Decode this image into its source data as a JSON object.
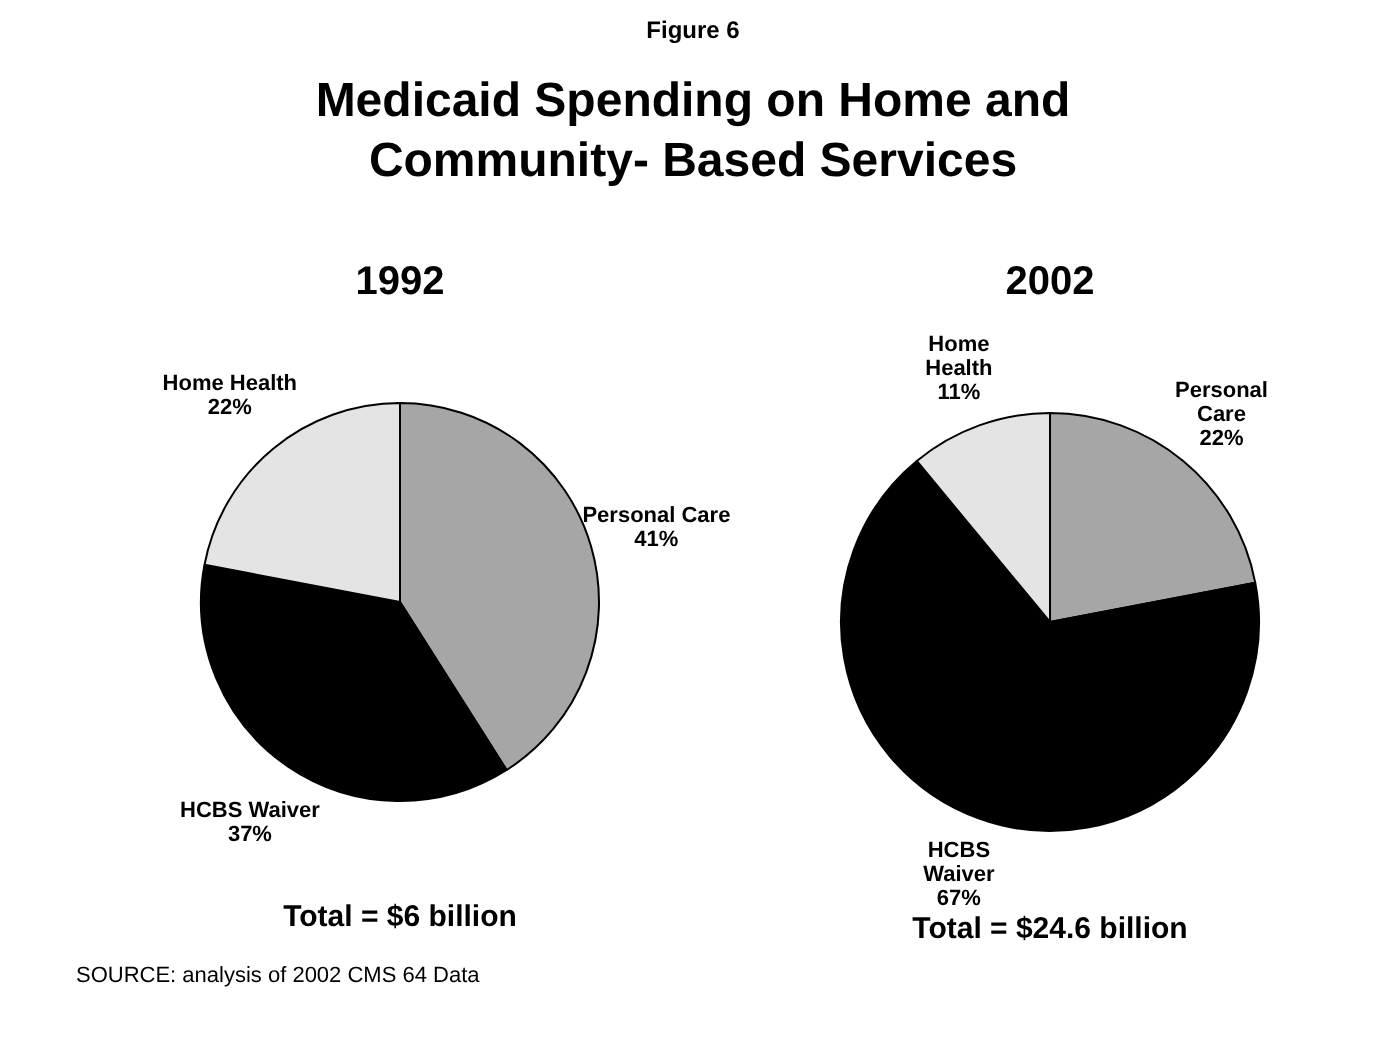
{
  "chart_data": [
    {
      "type": "other",
      "title": "Medicaid Spending on Home and Community- Based Services",
      "annotations": [
        "Figure 6"
      ]
    },
    {
      "type": "pie",
      "title": "1992",
      "categories": [
        "Personal Care",
        "HCBS Waiver",
        "Home Health"
      ],
      "values": [
        41,
        37,
        22
      ],
      "value_labels": [
        "41%",
        "37%",
        "22%"
      ],
      "colors": [
        "#a6a6a6",
        "#000000",
        "#e4e4e4"
      ],
      "annotations": [
        "Total = $6 billion",
        "SOURCE: analysis of 2002 CMS 64 Data"
      ]
    },
    {
      "type": "pie",
      "title": "2002",
      "categories": [
        "Personal Care",
        "HCBS Waiver",
        "Home Health"
      ],
      "values": [
        22,
        67,
        11
      ],
      "value_labels": [
        "22%",
        "67%",
        "11%"
      ],
      "colors": [
        "#a6a6a6",
        "#000000",
        "#e4e4e4"
      ],
      "annotations": [
        "Total = $24.6 billion"
      ]
    }
  ]
}
